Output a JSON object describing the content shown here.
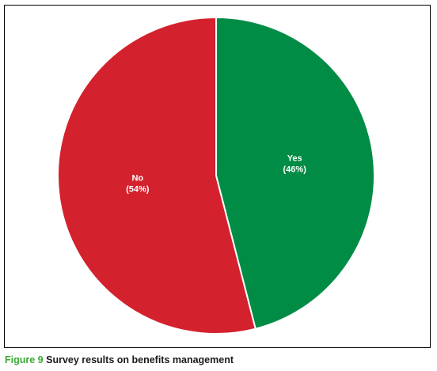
{
  "figure": {
    "number_label": "Figure 9",
    "caption_text": "Survey results on benefits management"
  },
  "chart_data": {
    "type": "pie",
    "title": "",
    "categories": [
      "Yes",
      "No"
    ],
    "values": [
      46,
      54
    ],
    "slice_labels": [
      {
        "name": "Yes",
        "percent_label": "(46%)"
      },
      {
        "name": "No",
        "percent_label": "(54%)"
      }
    ],
    "colors": [
      "#008c45",
      "#d3212d"
    ],
    "start_angle_position": "top (12 o'clock), clockwise",
    "legend": "none"
  }
}
